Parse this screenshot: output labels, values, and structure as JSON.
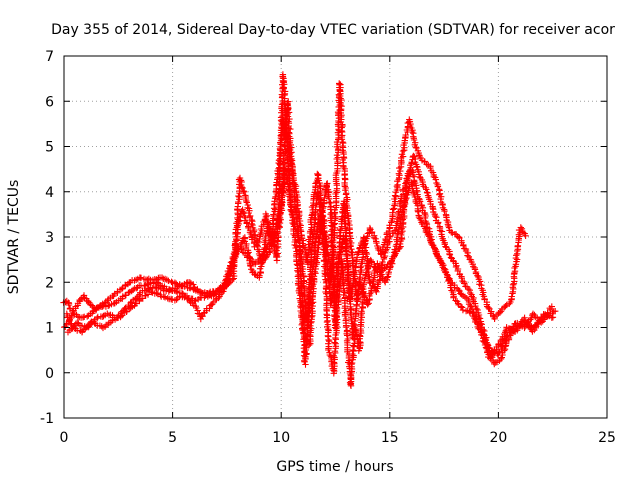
{
  "chart_data": {
    "type": "scatter",
    "title": "Day 355 of 2014, Sidereal Day-to-day VTEC variation (SDTVAR) for receiver acor",
    "xlabel": "GPS time / hours",
    "ylabel": "SDTVAR / TECUs",
    "xlim": [
      0,
      25
    ],
    "ylim": [
      -1,
      7
    ],
    "xticks": [
      "0",
      "5",
      "10",
      "15",
      "20",
      "25"
    ],
    "yticks": [
      "-1",
      "0",
      "1",
      "2",
      "3",
      "4",
      "5",
      "6",
      "7"
    ],
    "grid": true,
    "marker": "plus",
    "series": [
      {
        "name": "SDTVAR",
        "color": "#ff0000",
        "tracks": [
          [
            [
              0.0,
              1.0
            ],
            [
              0.3,
              1.2
            ],
            [
              0.6,
              1.5
            ],
            [
              0.9,
              1.7
            ],
            [
              1.2,
              1.5
            ],
            [
              1.5,
              1.4
            ],
            [
              2.0,
              1.6
            ],
            [
              2.5,
              1.8
            ],
            [
              3.0,
              2.0
            ],
            [
              3.5,
              2.1
            ],
            [
              4.0,
              2.05
            ],
            [
              4.5,
              2.1
            ],
            [
              5.0,
              2.0
            ],
            [
              5.5,
              1.9
            ],
            [
              6.0,
              1.85
            ],
            [
              6.5,
              1.75
            ],
            [
              7.0,
              1.8
            ],
            [
              7.5,
              2.0
            ],
            [
              7.8,
              2.4
            ],
            [
              8.0,
              3.2
            ],
            [
              8.2,
              3.6
            ],
            [
              8.5,
              3.2
            ],
            [
              8.8,
              2.8
            ],
            [
              9.0,
              3.0
            ],
            [
              9.3,
              3.5
            ],
            [
              9.6,
              2.8
            ],
            [
              9.9,
              3.2
            ],
            [
              10.2,
              4.5
            ],
            [
              10.5,
              3.5
            ],
            [
              10.8,
              3.0
            ],
            [
              11.0,
              2.2
            ],
            [
              11.2,
              1.0
            ],
            [
              11.4,
              2.8
            ],
            [
              11.7,
              4.0
            ],
            [
              12.0,
              3.0
            ],
            [
              12.3,
              1.5
            ],
            [
              12.6,
              2.4
            ],
            [
              12.9,
              3.0
            ],
            [
              13.2,
              1.6
            ],
            [
              13.5,
              2.6
            ],
            [
              13.8,
              3.0
            ],
            [
              14.1,
              2.0
            ],
            [
              14.4,
              1.8
            ],
            [
              14.7,
              2.5
            ],
            [
              15.0,
              3.0
            ],
            [
              15.3,
              3.2
            ],
            [
              15.6,
              4.0
            ],
            [
              16.0,
              4.5
            ],
            [
              16.3,
              3.9
            ],
            [
              16.6,
              3.5
            ],
            [
              17.0,
              2.8
            ],
            [
              17.4,
              2.4
            ],
            [
              17.8,
              2.0
            ],
            [
              18.2,
              1.8
            ],
            [
              18.6,
              1.6
            ],
            [
              19.0,
              1.2
            ],
            [
              19.4,
              0.7
            ],
            [
              19.8,
              0.2
            ],
            [
              20.1,
              0.3
            ],
            [
              20.4,
              0.7
            ],
            [
              20.8,
              1.0
            ],
            [
              21.2,
              1.1
            ],
            [
              21.6,
              1.0
            ],
            [
              22.0,
              1.2
            ],
            [
              22.4,
              1.3
            ],
            [
              22.7,
              1.4
            ]
          ],
          [
            [
              0.2,
              0.9
            ],
            [
              0.6,
              1.1
            ],
            [
              1.0,
              1.0
            ],
            [
              1.5,
              1.2
            ],
            [
              2.0,
              1.3
            ],
            [
              2.5,
              1.2
            ],
            [
              3.0,
              1.4
            ],
            [
              3.5,
              1.6
            ],
            [
              4.0,
              1.8
            ],
            [
              4.5,
              1.7
            ],
            [
              5.0,
              1.6
            ],
            [
              5.5,
              1.7
            ],
            [
              6.0,
              1.5
            ],
            [
              6.3,
              1.2
            ],
            [
              6.6,
              1.4
            ],
            [
              7.0,
              1.6
            ],
            [
              7.3,
              1.8
            ],
            [
              7.6,
              2.3
            ],
            [
              8.0,
              2.8
            ],
            [
              8.4,
              2.6
            ],
            [
              8.8,
              2.4
            ],
            [
              9.2,
              2.6
            ],
            [
              9.6,
              3.0
            ],
            [
              10.0,
              3.6
            ],
            [
              10.3,
              6.0
            ],
            [
              10.5,
              4.5
            ],
            [
              10.8,
              3.0
            ],
            [
              11.0,
              1.5
            ],
            [
              11.1,
              0.2
            ],
            [
              11.3,
              1.5
            ],
            [
              11.6,
              3.0
            ],
            [
              11.8,
              3.5
            ],
            [
              12.0,
              2.5
            ],
            [
              12.2,
              0.5
            ],
            [
              12.4,
              0.0
            ],
            [
              12.6,
              1.5
            ],
            [
              12.8,
              2.5
            ],
            [
              13.0,
              1.0
            ],
            [
              13.2,
              -0.3
            ],
            [
              13.4,
              1.0
            ],
            [
              13.6,
              0.5
            ],
            [
              13.8,
              2.0
            ],
            [
              14.1,
              2.5
            ],
            [
              14.5,
              2.2
            ],
            [
              15.0,
              2.4
            ],
            [
              15.5,
              2.8
            ],
            [
              15.8,
              4.3
            ],
            [
              16.1,
              4.8
            ],
            [
              16.4,
              4.3
            ],
            [
              16.7,
              4.0
            ],
            [
              17.0,
              3.6
            ],
            [
              17.3,
              3.2
            ],
            [
              17.6,
              2.8
            ],
            [
              18.0,
              2.4
            ],
            [
              18.4,
              2.0
            ],
            [
              18.8,
              1.7
            ],
            [
              19.2,
              1.1
            ],
            [
              19.6,
              0.5
            ],
            [
              20.0,
              0.4
            ],
            [
              20.4,
              0.8
            ],
            [
              20.8,
              1.1
            ],
            [
              21.2,
              1.0
            ],
            [
              21.6,
              1.3
            ],
            [
              22.0,
              1.1
            ],
            [
              22.5,
              1.5
            ]
          ],
          [
            [
              0.0,
              1.55
            ],
            [
              0.15,
              1.6
            ],
            [
              0.3,
              1.4
            ],
            [
              0.5,
              1.3
            ],
            [
              0.8,
              1.2
            ],
            [
              1.2,
              1.3
            ],
            [
              1.6,
              1.45
            ],
            [
              2.2,
              1.5
            ],
            [
              2.8,
              1.7
            ],
            [
              3.4,
              1.9
            ],
            [
              4.2,
              2.0
            ],
            [
              4.8,
              1.85
            ],
            [
              5.4,
              1.75
            ],
            [
              6.0,
              1.6
            ],
            [
              6.6,
              1.7
            ],
            [
              7.2,
              1.8
            ],
            [
              7.8,
              2.1
            ],
            [
              8.1,
              4.3
            ],
            [
              8.4,
              3.8
            ],
            [
              8.7,
              3.2
            ],
            [
              9.1,
              2.4
            ],
            [
              9.5,
              2.7
            ],
            [
              9.9,
              4.6
            ],
            [
              10.1,
              5.6
            ],
            [
              10.3,
              5.1
            ],
            [
              10.6,
              4.3
            ],
            [
              10.9,
              3.2
            ],
            [
              11.2,
              2.4
            ],
            [
              11.5,
              3.9
            ],
            [
              11.7,
              4.4
            ],
            [
              12.0,
              3.2
            ],
            [
              12.3,
              2.0
            ],
            [
              12.5,
              3.6
            ],
            [
              12.7,
              6.4
            ],
            [
              12.8,
              5.4
            ],
            [
              12.9,
              4.4
            ],
            [
              13.1,
              3.4
            ],
            [
              13.3,
              2.4
            ],
            [
              13.5,
              1.6
            ],
            [
              13.8,
              2.8
            ],
            [
              14.1,
              3.2
            ],
            [
              14.6,
              2.6
            ],
            [
              15.1,
              3.4
            ],
            [
              15.5,
              4.6
            ],
            [
              15.9,
              5.6
            ],
            [
              16.2,
              5.0
            ],
            [
              16.5,
              4.7
            ],
            [
              16.8,
              4.6
            ],
            [
              17.1,
              4.3
            ],
            [
              17.5,
              3.6
            ],
            [
              17.8,
              3.1
            ],
            [
              18.2,
              3.0
            ],
            [
              18.6,
              2.6
            ],
            [
              19.0,
              2.2
            ],
            [
              19.4,
              1.6
            ],
            [
              19.8,
              1.2
            ],
            [
              20.2,
              1.4
            ],
            [
              20.6,
              1.6
            ],
            [
              21.0,
              3.2
            ],
            [
              21.3,
              3.0
            ]
          ],
          [
            [
              0.1,
              1.3
            ],
            [
              0.4,
              1.0
            ],
            [
              0.8,
              0.9
            ],
            [
              1.3,
              1.1
            ],
            [
              1.8,
              1.0
            ],
            [
              2.4,
              1.2
            ],
            [
              3.0,
              1.5
            ],
            [
              3.6,
              1.8
            ],
            [
              4.2,
              1.9
            ],
            [
              4.8,
              1.8
            ],
            [
              5.2,
              1.9
            ],
            [
              5.8,
              2.0
            ],
            [
              6.2,
              1.8
            ],
            [
              6.8,
              1.7
            ],
            [
              7.4,
              1.9
            ],
            [
              7.9,
              2.6
            ],
            [
              8.3,
              3.0
            ],
            [
              8.7,
              2.2
            ],
            [
              9.0,
              2.1
            ],
            [
              9.4,
              3.3
            ],
            [
              9.8,
              2.5
            ],
            [
              10.1,
              6.6
            ],
            [
              10.4,
              4.0
            ],
            [
              10.7,
              2.6
            ],
            [
              11.0,
              0.9
            ],
            [
              11.3,
              0.6
            ],
            [
              11.5,
              2.0
            ],
            [
              11.8,
              3.2
            ],
            [
              12.1,
              4.2
            ],
            [
              12.3,
              3.6
            ],
            [
              12.5,
              1.0
            ],
            [
              12.7,
              3.0
            ],
            [
              12.9,
              3.8
            ],
            [
              13.1,
              2.0
            ],
            [
              13.3,
              0.8
            ],
            [
              13.6,
              2.0
            ],
            [
              14.0,
              1.5
            ],
            [
              14.4,
              2.4
            ],
            [
              14.8,
              2.0
            ],
            [
              15.2,
              2.6
            ],
            [
              15.6,
              3.6
            ],
            [
              16.0,
              4.2
            ],
            [
              16.4,
              3.4
            ],
            [
              16.8,
              3.0
            ],
            [
              17.2,
              2.6
            ],
            [
              17.6,
              2.2
            ],
            [
              18.0,
              1.6
            ],
            [
              18.4,
              1.4
            ],
            [
              18.8,
              1.3
            ],
            [
              19.2,
              0.9
            ],
            [
              19.6,
              0.3
            ],
            [
              20.0,
              0.6
            ],
            [
              20.4,
              1.0
            ],
            [
              20.8,
              0.9
            ],
            [
              21.2,
              1.2
            ],
            [
              21.6,
              0.9
            ],
            [
              22.1,
              1.3
            ],
            [
              22.6,
              1.2
            ]
          ]
        ]
      }
    ]
  }
}
